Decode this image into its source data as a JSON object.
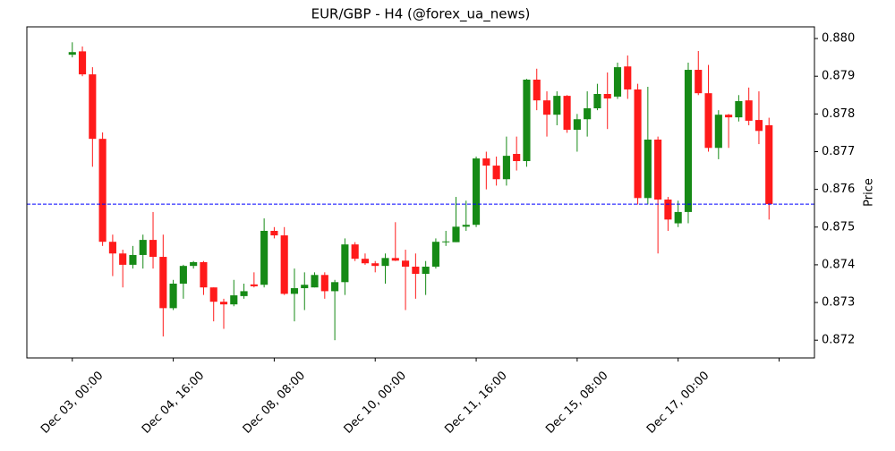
{
  "chart_data": {
    "type": "candlestick",
    "title": "EUR/GBP - H4 (@forex_ua_news)",
    "ylabel": "Price",
    "up_color": "#168a16",
    "down_color": "#ff1a1a",
    "open": [
      0.87957,
      0.87966,
      0.87905,
      0.87734,
      0.87461,
      0.8743,
      0.874,
      0.87426,
      0.87466,
      0.87421,
      0.87285,
      0.8735,
      0.87397,
      0.87407,
      0.8734,
      0.87302,
      0.87295,
      0.87317,
      0.87348,
      0.87347,
      0.8749,
      0.87478,
      0.87323,
      0.87338,
      0.8734,
      0.87373,
      0.8733,
      0.87354,
      0.87454,
      0.87416,
      0.87404,
      0.87397,
      0.87418,
      0.87411,
      0.87395,
      0.87376,
      0.87395,
      0.8746,
      0.8746,
      0.87501,
      0.87506,
      0.87682,
      0.87663,
      0.87627,
      0.87694,
      0.87675,
      0.87891,
      0.87836,
      0.87798,
      0.87848,
      0.87758,
      0.87786,
      0.87815,
      0.87853,
      0.87846,
      0.87926,
      0.87865,
      0.87577,
      0.87732,
      0.87573,
      0.8751,
      0.8754,
      0.87917,
      0.87855,
      0.8771,
      0.87798,
      0.87791,
      0.87836,
      0.87784,
      0.8777
    ],
    "high": [
      0.8799,
      0.87979,
      0.87924,
      0.87751,
      0.8748,
      0.8744,
      0.8745,
      0.8748,
      0.8754,
      0.8748,
      0.8736,
      0.874,
      0.8741,
      0.8741,
      0.8734,
      0.8731,
      0.8736,
      0.8735,
      0.8738,
      0.87523,
      0.875,
      0.875,
      0.8739,
      0.8738,
      0.8738,
      0.8738,
      0.8736,
      0.8747,
      0.8746,
      0.8743,
      0.8741,
      0.8743,
      0.87513,
      0.8744,
      0.8743,
      0.8741,
      0.8747,
      0.8749,
      0.8758,
      0.8757,
      0.87687,
      0.877,
      0.87687,
      0.8774,
      0.8774,
      0.87893,
      0.8792,
      0.8786,
      0.8786,
      0.8785,
      0.878,
      0.8786,
      0.8788,
      0.8791,
      0.87936,
      0.87955,
      0.8788,
      0.87872,
      0.8774,
      0.8758,
      0.8757,
      0.87936,
      0.87967,
      0.8793,
      0.8781,
      0.878,
      0.8785,
      0.8787,
      0.8786,
      0.8779
    ],
    "low": [
      0.8795,
      0.879,
      0.8766,
      0.8745,
      0.8737,
      0.8734,
      0.8739,
      0.8739,
      0.8739,
      0.8721,
      0.8728,
      0.8731,
      0.8739,
      0.8732,
      0.8725,
      0.8723,
      0.8729,
      0.8731,
      0.8734,
      0.8734,
      0.8747,
      0.8732,
      0.8725,
      0.8728,
      0.8734,
      0.8731,
      0.872,
      0.8732,
      0.8741,
      0.874,
      0.8738,
      0.8735,
      0.8741,
      0.8728,
      0.8731,
      0.8732,
      0.8739,
      0.8745,
      0.8746,
      0.8749,
      0.875,
      0.876,
      0.8761,
      0.8761,
      0.8765,
      0.8766,
      0.8781,
      0.8774,
      0.8777,
      0.8775,
      0.877,
      0.8774,
      0.8781,
      0.8776,
      0.8784,
      0.8784,
      0.8756,
      0.8756,
      0.8743,
      0.8749,
      0.875,
      0.8751,
      0.8785,
      0.877,
      0.8768,
      0.8771,
      0.8778,
      0.8777,
      0.8772,
      0.8752
    ],
    "close": [
      0.87964,
      0.87905,
      0.87734,
      0.87461,
      0.8743,
      0.874,
      0.87426,
      0.87466,
      0.87421,
      0.87285,
      0.8735,
      0.87397,
      0.87407,
      0.8734,
      0.87302,
      0.87295,
      0.87319,
      0.8733,
      0.87343,
      0.8749,
      0.87478,
      0.87323,
      0.87338,
      0.87347,
      0.87373,
      0.8733,
      0.87354,
      0.87454,
      0.87416,
      0.87404,
      0.87397,
      0.87418,
      0.87411,
      0.87395,
      0.87376,
      0.87395,
      0.87461,
      0.87462,
      0.87501,
      0.87506,
      0.87682,
      0.87663,
      0.87627,
      0.87689,
      0.87675,
      0.87891,
      0.87836,
      0.87798,
      0.87848,
      0.87758,
      0.87786,
      0.87815,
      0.87853,
      0.87841,
      0.87924,
      0.87865,
      0.87577,
      0.87732,
      0.87573,
      0.8752,
      0.8754,
      0.87917,
      0.87855,
      0.8771,
      0.87798,
      0.87791,
      0.87834,
      0.87782,
      0.87755,
      0.87561
    ],
    "hline": {
      "value": 0.87561,
      "color": "#0000ff"
    },
    "xlim": [
      -4.5,
      73.5
    ],
    "xticks": [
      {
        "value": 0,
        "label": "Dec 03, 00:00"
      },
      {
        "value": 10,
        "label": "Dec 04, 16:00"
      },
      {
        "value": 20,
        "label": "Dec 08, 08:00"
      },
      {
        "value": 30,
        "label": "Dec 10, 00:00"
      },
      {
        "value": 40,
        "label": "Dec 11, 16:00"
      },
      {
        "value": 50,
        "label": "Dec 15, 08:00"
      },
      {
        "value": 60,
        "label": "Dec 17, 00:00"
      },
      {
        "value": 70,
        "label": null
      }
    ],
    "ylim": [
      0.87153,
      0.88031
    ],
    "yticks": [
      0.872,
      0.873,
      0.874,
      0.875,
      0.876,
      0.877,
      0.878,
      0.879,
      {
        "value": 0.88,
        "label": "0.880"
      }
    ]
  }
}
